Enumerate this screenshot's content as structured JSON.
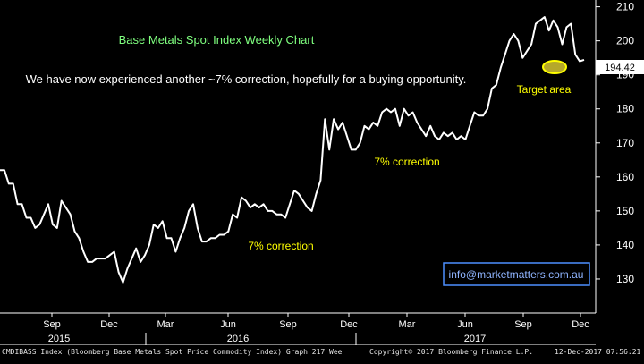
{
  "chart_data": {
    "type": "line",
    "title": "Base Metals Spot Index Weekly Chart",
    "subtitle": "We have now experienced another ~7% correction, hopefully for a buying opportunity.",
    "xlabel": "",
    "ylabel": "",
    "ylim": [
      120,
      212
    ],
    "yticks": [
      130,
      140,
      150,
      160,
      170,
      180,
      190,
      200,
      210
    ],
    "grid": false,
    "last_value": 194.42,
    "x_tick_labels": [
      "Sep",
      "Dec",
      "Mar",
      "Jun",
      "Sep",
      "Dec",
      "Mar",
      "Jun",
      "Sep",
      "Dec"
    ],
    "year_labels": [
      "2015",
      "2016",
      "2017"
    ],
    "annotations": [
      "7% correction",
      "7% correction",
      "Target area"
    ],
    "website": "info@marketmatters.com.au",
    "series": [
      {
        "values": [
          162,
          162,
          158,
          158,
          152,
          152,
          148,
          148,
          145,
          146,
          149,
          152,
          146,
          145,
          153,
          151,
          149,
          144,
          142,
          138,
          135,
          135,
          136,
          136,
          136,
          137,
          138,
          132,
          129,
          133,
          136,
          139,
          135,
          137,
          140,
          146,
          145,
          147,
          142,
          142,
          138,
          142,
          145,
          150,
          152,
          145,
          141,
          141,
          142,
          142,
          143,
          143,
          144,
          149,
          148,
          154,
          153,
          151,
          152,
          151,
          152,
          150,
          150,
          149,
          149,
          148,
          152,
          156,
          155,
          153,
          151,
          150,
          155,
          159,
          177,
          168,
          177,
          174,
          176,
          172,
          168,
          168,
          170,
          175,
          174,
          176,
          175,
          179,
          180,
          179,
          180,
          175,
          180,
          178,
          179,
          176,
          174,
          172,
          175,
          172,
          171,
          173,
          172,
          173,
          171,
          172,
          171,
          175,
          179,
          178,
          178,
          180,
          186,
          187,
          192,
          196,
          200,
          202,
          200,
          195,
          197,
          199,
          205,
          206,
          207,
          203,
          206,
          204,
          199,
          204,
          205,
          196,
          194,
          194.42
        ]
      }
    ],
    "colors": {
      "background": "#000000",
      "line": "#ffffff",
      "title": "#7fff7f",
      "annotation": "#ffff00",
      "website": "#4d8fff"
    }
  },
  "footer": {
    "source": "CMDIBASS Index (Bloomberg Base Metals Spot Price Commodity Index) Graph 217  Wee",
    "copyright": "Copyright© 2017 Bloomberg Finance L.P.",
    "timestamp": "12-Dec-2017 07:56:21"
  }
}
